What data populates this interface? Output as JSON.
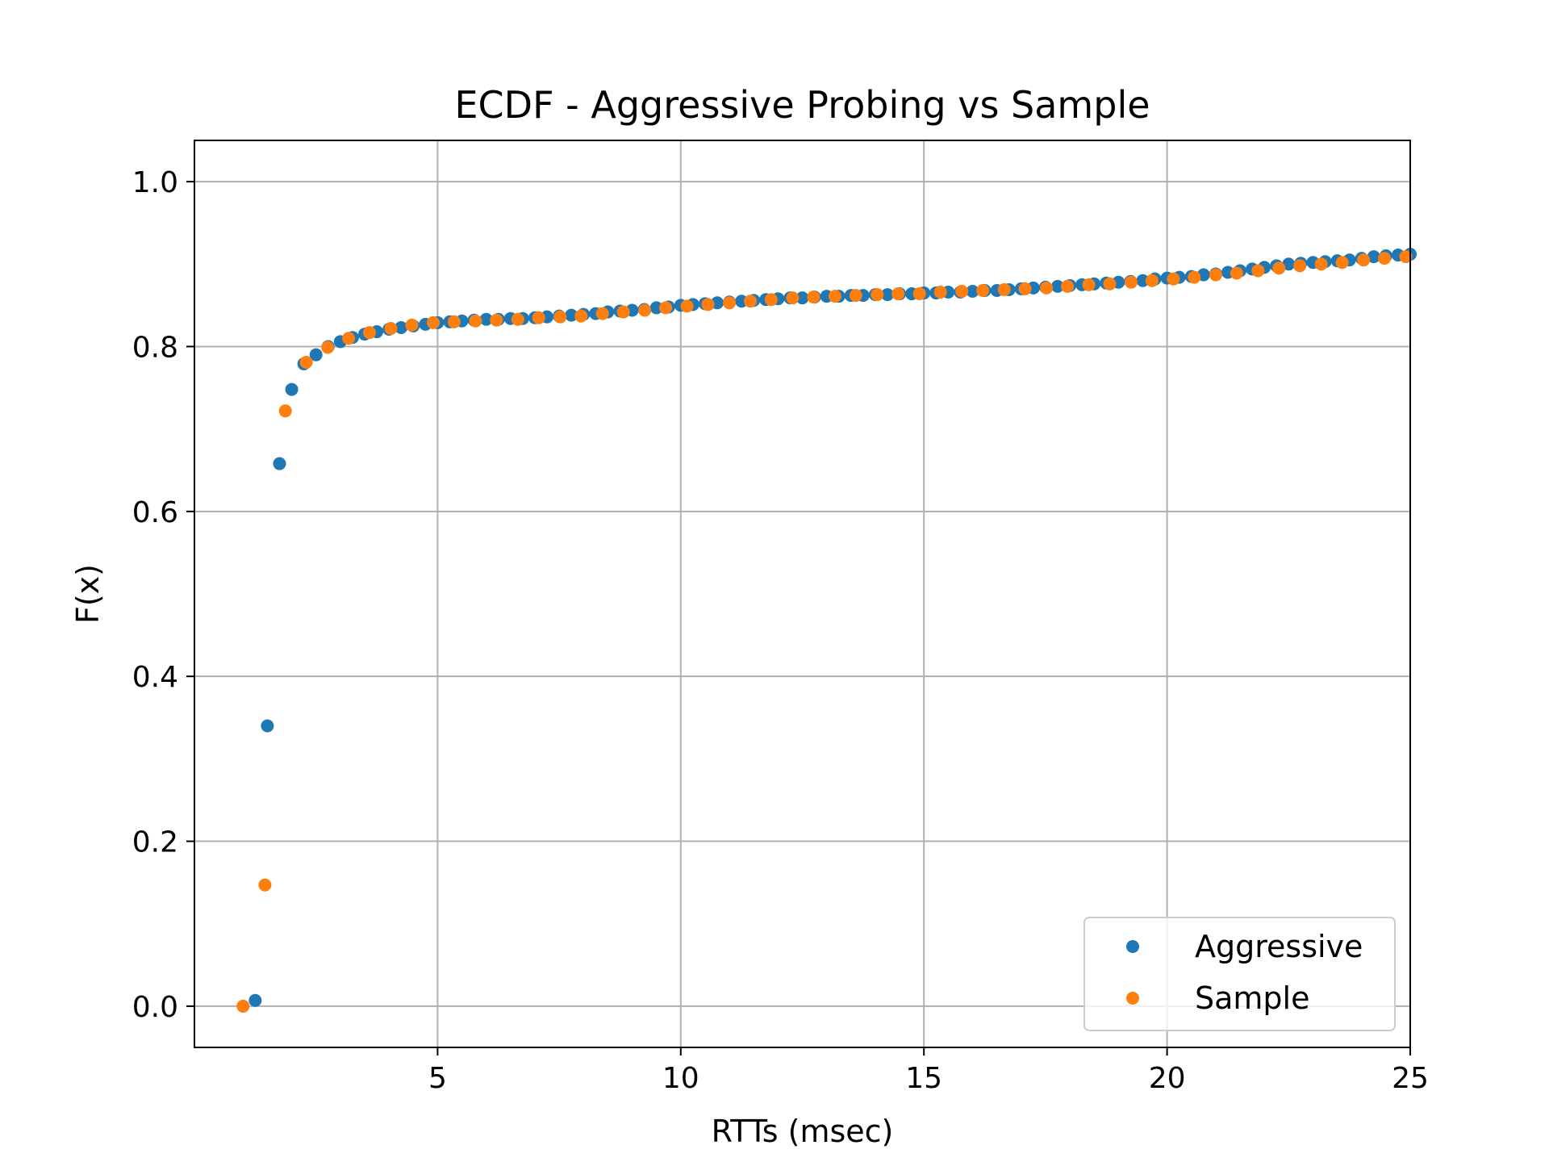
{
  "chart_data": {
    "type": "scatter",
    "title": "ECDF - Aggressive Probing vs Sample",
    "xlabel": "RTTs (msec)",
    "ylabel": "F(x)",
    "xlim": [
      0,
      25
    ],
    "ylim": [
      -0.05,
      1.05
    ],
    "xticks": [
      5,
      10,
      15,
      20,
      25
    ],
    "yticks": [
      0.0,
      0.2,
      0.4,
      0.6,
      0.8,
      1.0
    ],
    "ytick_labels": [
      "0.0",
      "0.2",
      "0.4",
      "0.6",
      "0.8",
      "1.0"
    ],
    "xtick_labels": [
      "5",
      "10",
      "15",
      "20",
      "25"
    ],
    "grid": true,
    "legend_position": "lower-right",
    "series": [
      {
        "name": "Aggressive",
        "color": "#1f77b4",
        "points": [
          [
            1.25,
            0.007
          ],
          [
            1.5,
            0.34
          ],
          [
            1.75,
            0.658
          ],
          [
            2.0,
            0.748
          ],
          [
            2.25,
            0.779
          ],
          [
            2.5,
            0.79
          ],
          [
            2.75,
            0.8
          ],
          [
            3.0,
            0.806
          ],
          [
            3.25,
            0.811
          ],
          [
            3.5,
            0.815
          ],
          [
            3.75,
            0.818
          ],
          [
            4.0,
            0.821
          ],
          [
            4.25,
            0.823
          ],
          [
            4.5,
            0.825
          ],
          [
            4.75,
            0.827
          ],
          [
            5.0,
            0.829
          ],
          [
            5.25,
            0.83
          ],
          [
            5.5,
            0.831
          ],
          [
            5.75,
            0.832
          ],
          [
            6.0,
            0.833
          ],
          [
            6.25,
            0.833
          ],
          [
            6.5,
            0.834
          ],
          [
            6.75,
            0.834
          ],
          [
            7.0,
            0.835
          ],
          [
            7.25,
            0.836
          ],
          [
            7.5,
            0.837
          ],
          [
            7.75,
            0.838
          ],
          [
            8.0,
            0.839
          ],
          [
            8.25,
            0.84
          ],
          [
            8.5,
            0.842
          ],
          [
            8.75,
            0.843
          ],
          [
            9.0,
            0.844
          ],
          [
            9.25,
            0.845
          ],
          [
            9.5,
            0.847
          ],
          [
            9.75,
            0.848
          ],
          [
            10.0,
            0.85
          ],
          [
            10.25,
            0.851
          ],
          [
            10.5,
            0.852
          ],
          [
            10.75,
            0.853
          ],
          [
            11.0,
            0.854
          ],
          [
            11.25,
            0.855
          ],
          [
            11.5,
            0.856
          ],
          [
            11.75,
            0.857
          ],
          [
            12.0,
            0.858
          ],
          [
            12.25,
            0.859
          ],
          [
            12.5,
            0.859
          ],
          [
            12.75,
            0.86
          ],
          [
            13.0,
            0.861
          ],
          [
            13.25,
            0.861
          ],
          [
            13.5,
            0.862
          ],
          [
            13.75,
            0.862
          ],
          [
            14.0,
            0.863
          ],
          [
            14.25,
            0.863
          ],
          [
            14.5,
            0.864
          ],
          [
            14.75,
            0.864
          ],
          [
            15.0,
            0.865
          ],
          [
            15.25,
            0.865
          ],
          [
            15.5,
            0.866
          ],
          [
            15.75,
            0.866
          ],
          [
            16.0,
            0.867
          ],
          [
            16.25,
            0.868
          ],
          [
            16.5,
            0.868
          ],
          [
            16.75,
            0.869
          ],
          [
            17.0,
            0.87
          ],
          [
            17.25,
            0.871
          ],
          [
            17.5,
            0.872
          ],
          [
            17.75,
            0.873
          ],
          [
            18.0,
            0.874
          ],
          [
            18.25,
            0.875
          ],
          [
            18.5,
            0.876
          ],
          [
            18.75,
            0.877
          ],
          [
            19.0,
            0.878
          ],
          [
            19.25,
            0.879
          ],
          [
            19.5,
            0.88
          ],
          [
            19.75,
            0.882
          ],
          [
            20.0,
            0.883
          ],
          [
            20.25,
            0.884
          ],
          [
            20.5,
            0.885
          ],
          [
            20.75,
            0.887
          ],
          [
            21.0,
            0.888
          ],
          [
            21.25,
            0.89
          ],
          [
            21.5,
            0.892
          ],
          [
            21.75,
            0.894
          ],
          [
            22.0,
            0.896
          ],
          [
            22.25,
            0.898
          ],
          [
            22.5,
            0.9
          ],
          [
            22.75,
            0.901
          ],
          [
            23.0,
            0.902
          ],
          [
            23.25,
            0.903
          ],
          [
            23.5,
            0.904
          ],
          [
            23.75,
            0.905
          ],
          [
            24.0,
            0.907
          ],
          [
            24.25,
            0.909
          ],
          [
            24.5,
            0.91
          ],
          [
            24.75,
            0.911
          ],
          [
            25.0,
            0.912
          ]
        ]
      },
      {
        "name": "Sample",
        "color": "#ff7f0e",
        "points": [
          [
            1.0,
            0.0
          ],
          [
            1.45,
            0.147
          ],
          [
            1.87,
            0.722
          ],
          [
            2.3,
            0.781
          ],
          [
            2.74,
            0.799
          ],
          [
            3.17,
            0.81
          ],
          [
            3.6,
            0.817
          ],
          [
            4.04,
            0.822
          ],
          [
            4.47,
            0.826
          ],
          [
            4.91,
            0.829
          ],
          [
            5.34,
            0.83
          ],
          [
            5.78,
            0.831
          ],
          [
            6.21,
            0.832
          ],
          [
            6.65,
            0.833
          ],
          [
            7.08,
            0.835
          ],
          [
            7.52,
            0.836
          ],
          [
            7.95,
            0.837
          ],
          [
            8.39,
            0.84
          ],
          [
            8.82,
            0.842
          ],
          [
            9.26,
            0.844
          ],
          [
            9.69,
            0.847
          ],
          [
            10.13,
            0.849
          ],
          [
            10.56,
            0.851
          ],
          [
            11.0,
            0.853
          ],
          [
            11.43,
            0.855
          ],
          [
            11.86,
            0.857
          ],
          [
            12.3,
            0.859
          ],
          [
            12.73,
            0.86
          ],
          [
            13.17,
            0.861
          ],
          [
            13.6,
            0.862
          ],
          [
            14.04,
            0.863
          ],
          [
            14.47,
            0.864
          ],
          [
            14.91,
            0.864
          ],
          [
            15.34,
            0.866
          ],
          [
            15.78,
            0.867
          ],
          [
            16.21,
            0.868
          ],
          [
            16.65,
            0.869
          ],
          [
            17.08,
            0.87
          ],
          [
            17.52,
            0.871
          ],
          [
            17.95,
            0.873
          ],
          [
            18.39,
            0.875
          ],
          [
            18.82,
            0.876
          ],
          [
            19.26,
            0.878
          ],
          [
            19.69,
            0.88
          ],
          [
            20.13,
            0.882
          ],
          [
            20.56,
            0.884
          ],
          [
            21.0,
            0.887
          ],
          [
            21.43,
            0.889
          ],
          [
            21.87,
            0.892
          ],
          [
            22.3,
            0.895
          ],
          [
            22.73,
            0.898
          ],
          [
            23.17,
            0.9
          ],
          [
            23.6,
            0.902
          ],
          [
            24.04,
            0.905
          ],
          [
            24.47,
            0.907
          ],
          [
            24.91,
            0.909
          ]
        ]
      }
    ]
  }
}
